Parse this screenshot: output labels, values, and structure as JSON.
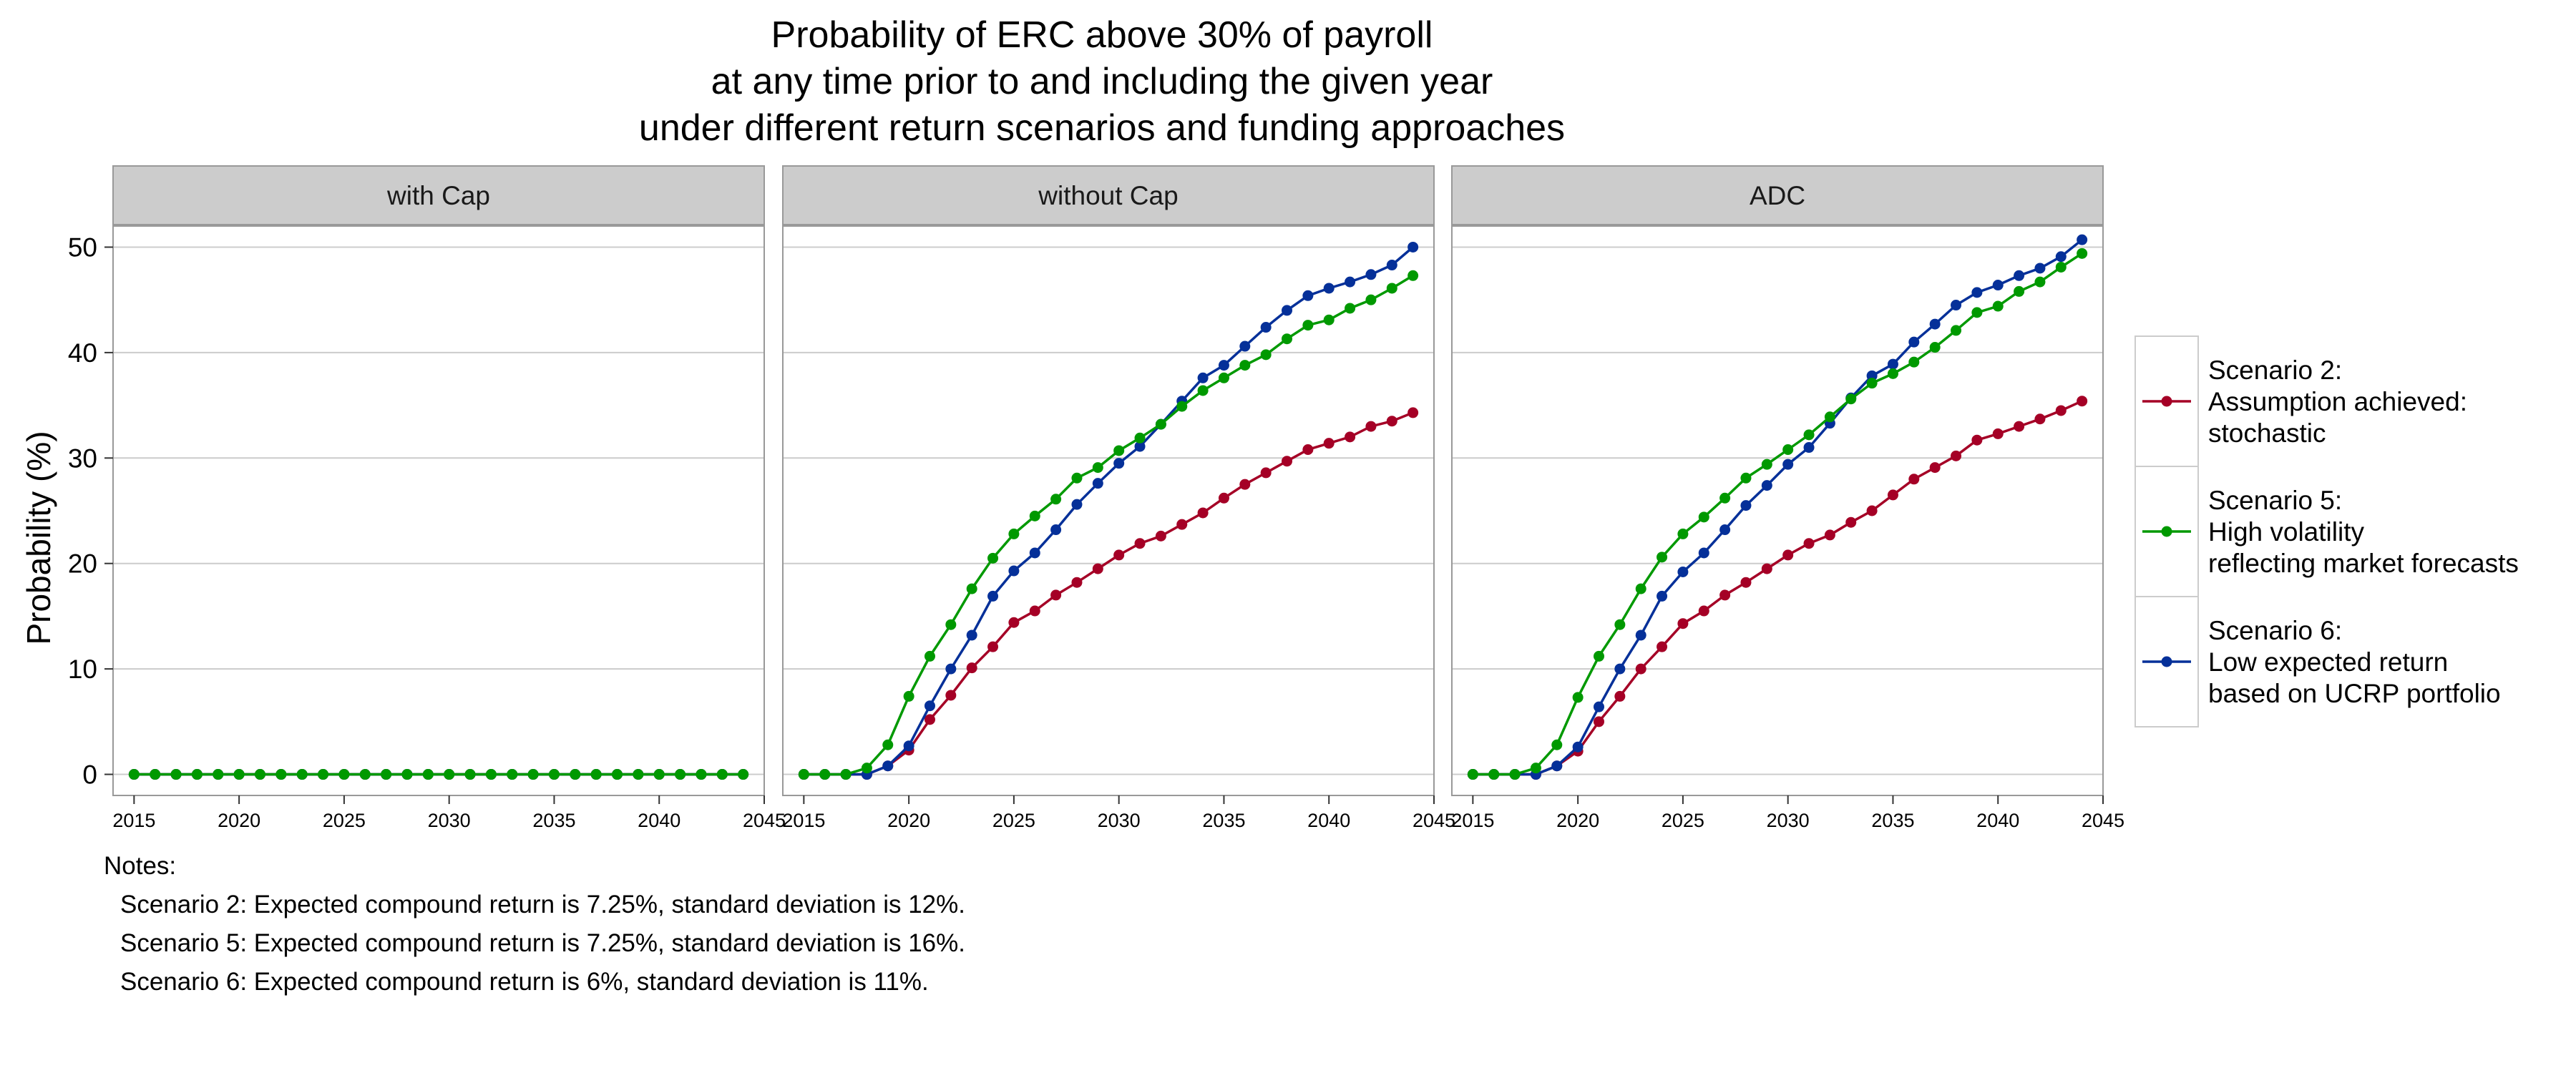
{
  "chart_data": {
    "type": "line",
    "title": [
      "Probability of ERC above 30% of payroll",
      "at any time prior to and including the given year",
      "under different return scenarios and funding approaches"
    ],
    "xlabel": "",
    "ylabel": "Probability (%)",
    "xlim": [
      2014,
      2045
    ],
    "ylim": [
      -2,
      52
    ],
    "x_ticks": [
      2015,
      2020,
      2025,
      2030,
      2035,
      2040,
      2045
    ],
    "y_ticks": [
      0,
      10,
      20,
      30,
      40,
      50
    ],
    "grid": true,
    "legend_position": "right",
    "x": [
      2015,
      2016,
      2017,
      2018,
      2019,
      2020,
      2021,
      2022,
      2023,
      2024,
      2025,
      2026,
      2027,
      2028,
      2029,
      2030,
      2031,
      2032,
      2033,
      2034,
      2035,
      2036,
      2037,
      2038,
      2039,
      2040,
      2041,
      2042,
      2043,
      2044
    ],
    "series_styles": [
      {
        "name": "Scenario 2:\nAssumption achieved:\nstochastic",
        "color": "#a50026"
      },
      {
        "name": "Scenario 5:\nHigh volatility\nreflecting market forecasts",
        "color": "#009900"
      },
      {
        "name": "Scenario 6:\nLow expected return\nbased on UCRP portfolio",
        "color": "#053099"
      }
    ],
    "panels": [
      {
        "strip": "with Cap",
        "series": [
          {
            "name": "Scenario 2:\nAssumption achieved:\nstochastic",
            "values": [
              0,
              0,
              0,
              0,
              0,
              0,
              0,
              0,
              0,
              0,
              0,
              0,
              0,
              0,
              0,
              0,
              0,
              0,
              0,
              0,
              0,
              0,
              0,
              0,
              0,
              0,
              0,
              0,
              0,
              0
            ]
          },
          {
            "name": "Scenario 6:\nLow expected return\nbased on UCRP portfolio",
            "values": [
              0,
              0,
              0,
              0,
              0,
              0,
              0,
              0,
              0,
              0,
              0,
              0,
              0,
              0,
              0,
              0,
              0,
              0,
              0,
              0,
              0,
              0,
              0,
              0,
              0,
              0,
              0,
              0,
              0,
              0
            ]
          },
          {
            "name": "Scenario 5:\nHigh volatility\nreflecting market forecasts",
            "values": [
              0,
              0,
              0,
              0,
              0,
              0,
              0,
              0,
              0,
              0,
              0,
              0,
              0,
              0,
              0,
              0,
              0,
              0,
              0,
              0,
              0,
              0,
              0,
              0,
              0,
              0,
              0,
              0,
              0,
              0
            ]
          }
        ]
      },
      {
        "strip": "without Cap",
        "series": [
          {
            "name": "Scenario 2:\nAssumption achieved:\nstochastic",
            "values": [
              0,
              0,
              0,
              0,
              0.8,
              2.3,
              5.2,
              7.5,
              10.1,
              12.1,
              14.4,
              15.5,
              17.0,
              18.2,
              19.5,
              20.8,
              21.9,
              22.6,
              23.7,
              24.8,
              26.2,
              27.5,
              28.6,
              29.7,
              30.8,
              31.4,
              32.0,
              33.0,
              33.5,
              34.3
            ]
          },
          {
            "name": "Scenario 6:\nLow expected return\nbased on UCRP portfolio",
            "values": [
              0,
              0,
              0,
              0,
              0.8,
              2.7,
              6.5,
              10.0,
              13.2,
              16.9,
              19.3,
              21.0,
              23.2,
              25.6,
              27.6,
              29.5,
              31.1,
              33.2,
              35.4,
              37.6,
              38.8,
              40.6,
              42.4,
              44.0,
              45.4,
              46.1,
              46.7,
              47.4,
              48.3,
              50.0
            ]
          },
          {
            "name": "Scenario 5:\nHigh volatility\nreflecting market forecasts",
            "values": [
              0,
              0,
              0,
              0.6,
              2.8,
              7.4,
              11.2,
              14.2,
              17.6,
              20.5,
              22.8,
              24.5,
              26.1,
              28.1,
              29.1,
              30.7,
              31.9,
              33.2,
              34.9,
              36.4,
              37.6,
              38.8,
              39.8,
              41.3,
              42.6,
              43.1,
              44.2,
              45.0,
              46.1,
              47.3
            ]
          }
        ]
      },
      {
        "strip": "ADC",
        "series": [
          {
            "name": "Scenario 2:\nAssumption achieved:\nstochastic",
            "values": [
              0,
              0,
              0,
              0,
              0.8,
              2.2,
              5.0,
              7.4,
              10.0,
              12.1,
              14.3,
              15.5,
              17.0,
              18.2,
              19.5,
              20.8,
              21.9,
              22.7,
              23.9,
              25.0,
              26.5,
              28.0,
              29.1,
              30.2,
              31.7,
              32.3,
              33.0,
              33.7,
              34.5,
              35.4
            ]
          },
          {
            "name": "Scenario 6:\nLow expected return\nbased on UCRP portfolio",
            "values": [
              0,
              0,
              0,
              0,
              0.8,
              2.6,
              6.4,
              10.0,
              13.2,
              16.9,
              19.2,
              21.0,
              23.2,
              25.5,
              27.4,
              29.4,
              31.0,
              33.3,
              35.7,
              37.8,
              38.9,
              41.0,
              42.7,
              44.5,
              45.7,
              46.4,
              47.3,
              48.0,
              49.1,
              50.7
            ]
          },
          {
            "name": "Scenario 5:\nHigh volatility\nreflecting market forecasts",
            "values": [
              0,
              0,
              0,
              0.6,
              2.8,
              7.3,
              11.2,
              14.2,
              17.6,
              20.6,
              22.8,
              24.4,
              26.2,
              28.1,
              29.4,
              30.8,
              32.2,
              33.9,
              35.6,
              37.1,
              38.0,
              39.1,
              40.5,
              42.1,
              43.8,
              44.4,
              45.8,
              46.7,
              48.1,
              49.4
            ]
          }
        ]
      }
    ],
    "notes": {
      "heading": "Notes:",
      "lines": [
        "Scenario 2: Expected compound return is 7.25%, standard deviation is 12%.",
        "Scenario 5: Expected compound return is 7.25%, standard deviation is 16%.",
        "Scenario 6: Expected compound return is 6%, standard deviation is 11%."
      ]
    },
    "colors": {
      "strip_fill": "#cccccc",
      "strip_border": "#999999",
      "panel_border": "#999999",
      "grid": "#cccccc"
    }
  }
}
